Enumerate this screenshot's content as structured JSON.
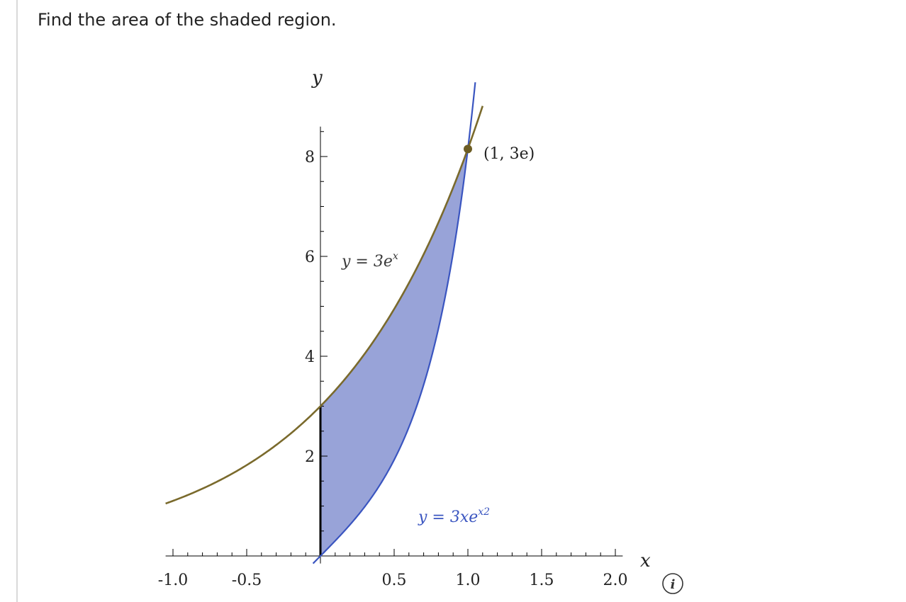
{
  "prompt": "Find the area of the shaded region.",
  "chart_data": {
    "type": "line",
    "xlabel": "x",
    "ylabel": "y",
    "xlim": [
      -1.05,
      2.05
    ],
    "ylim": [
      -0.15,
      8.6
    ],
    "x_ticks": [
      -1.0,
      -0.5,
      0.5,
      1.0,
      1.5,
      2.0
    ],
    "x_tick_labels": [
      "-1.0",
      "-0.5",
      "0.5",
      "1.0",
      "1.5",
      "2.0"
    ],
    "y_ticks": [
      2,
      4,
      6,
      8
    ],
    "y_tick_labels": [
      "2",
      "4",
      "6",
      "8"
    ],
    "series": [
      {
        "name": "y = 3e^x",
        "color": "#7a6a2c",
        "x": [
          -1.05,
          -0.75,
          -0.5,
          -0.25,
          0,
          0.25,
          0.5,
          0.75,
          1.0,
          1.1
        ],
        "y": [
          1.05,
          1.42,
          1.82,
          2.34,
          3.0,
          3.85,
          4.95,
          6.35,
          8.15,
          9.01
        ]
      },
      {
        "name": "y = 3xe^(x^2)",
        "color": "#3a55c0",
        "x": [
          -0.05,
          0,
          0.2,
          0.4,
          0.6,
          0.8,
          0.9,
          1.0,
          1.05
        ],
        "y": [
          -0.15,
          0,
          0.62,
          1.41,
          2.57,
          4.55,
          6.06,
          8.15,
          9.5
        ]
      }
    ],
    "shaded_region": {
      "between": [
        "y = 3e^x",
        "y = 3xe^(x^2)"
      ],
      "x_range": [
        0,
        1
      ],
      "color": "#98a3d8"
    },
    "annotations": [
      {
        "text": "(1, 3e)",
        "x": 1,
        "y": 8.15
      },
      {
        "text": "y = 3e",
        "sup": "x"
      },
      {
        "text": "y = 3xe",
        "sup": "x2"
      }
    ]
  }
}
